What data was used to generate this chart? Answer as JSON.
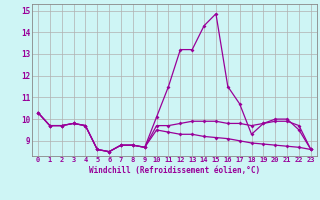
{
  "xlabel": "Windchill (Refroidissement éolien,°C)",
  "x": [
    0,
    1,
    2,
    3,
    4,
    5,
    6,
    7,
    8,
    9,
    10,
    11,
    12,
    13,
    14,
    15,
    16,
    17,
    18,
    19,
    20,
    21,
    22,
    23
  ],
  "y_main": [
    10.3,
    9.7,
    9.7,
    9.8,
    9.7,
    8.6,
    8.5,
    8.8,
    8.8,
    8.7,
    10.1,
    11.5,
    13.2,
    13.2,
    14.3,
    14.85,
    11.5,
    10.7,
    9.3,
    9.8,
    10.0,
    10.0,
    9.5,
    8.6
  ],
  "y_low": [
    10.3,
    9.7,
    9.7,
    9.8,
    9.7,
    8.6,
    8.5,
    8.8,
    8.8,
    8.7,
    9.5,
    9.4,
    9.3,
    9.3,
    9.2,
    9.15,
    9.1,
    9.0,
    8.9,
    8.85,
    8.8,
    8.75,
    8.7,
    8.6
  ],
  "y_high": [
    10.3,
    9.7,
    9.7,
    9.8,
    9.7,
    8.6,
    8.5,
    8.8,
    8.8,
    8.7,
    9.7,
    9.7,
    9.8,
    9.9,
    9.9,
    9.9,
    9.8,
    9.8,
    9.7,
    9.8,
    9.9,
    9.9,
    9.7,
    8.6
  ],
  "line_color": "#990099",
  "bg_color": "#cef5f5",
  "grid_color": "#b0b0b0",
  "ylim": [
    8.3,
    15.3
  ],
  "yticks": [
    9,
    10,
    11,
    12,
    13,
    14,
    15
  ],
  "xlim": [
    -0.5,
    23.5
  ]
}
